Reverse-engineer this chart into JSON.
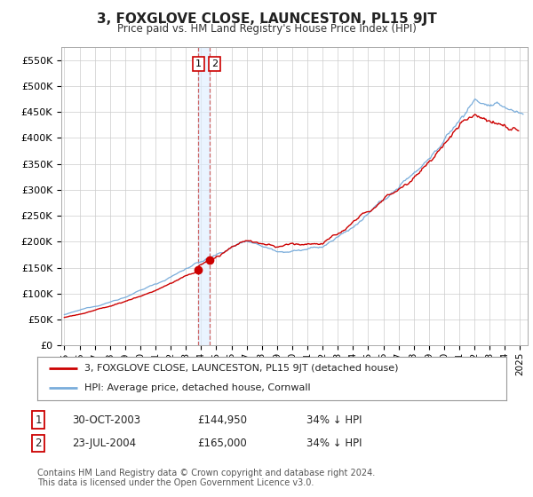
{
  "title": "3, FOXGLOVE CLOSE, LAUNCESTON, PL15 9JT",
  "subtitle": "Price paid vs. HM Land Registry's House Price Index (HPI)",
  "ylim": [
    0,
    575000
  ],
  "yticks": [
    0,
    50000,
    100000,
    150000,
    200000,
    250000,
    300000,
    350000,
    400000,
    450000,
    500000,
    550000
  ],
  "ytick_labels": [
    "£0",
    "£50K",
    "£100K",
    "£150K",
    "£200K",
    "£250K",
    "£300K",
    "£350K",
    "£400K",
    "£450K",
    "£500K",
    "£550K"
  ],
  "xlim_start": 1994.8,
  "xlim_end": 2025.5,
  "red_line_color": "#cc0000",
  "blue_line_color": "#7aaddb",
  "marker1_x": 2003.83,
  "marker1_y": 144950,
  "marker2_x": 2004.55,
  "marker2_y": 165000,
  "vline_x1": 2003.83,
  "vline_x2": 2004.55,
  "legend_red": "3, FOXGLOVE CLOSE, LAUNCESTON, PL15 9JT (detached house)",
  "legend_blue": "HPI: Average price, detached house, Cornwall",
  "table_row1": [
    "1",
    "30-OCT-2003",
    "£144,950",
    "34% ↓ HPI"
  ],
  "table_row2": [
    "2",
    "23-JUL-2004",
    "£165,000",
    "34% ↓ HPI"
  ],
  "footnote": "Contains HM Land Registry data © Crown copyright and database right 2024.\nThis data is licensed under the Open Government Licence v3.0.",
  "background_color": "#ffffff",
  "grid_color": "#cccccc",
  "vline_color": "#cc6666",
  "vfill_color": "#ddeeff"
}
